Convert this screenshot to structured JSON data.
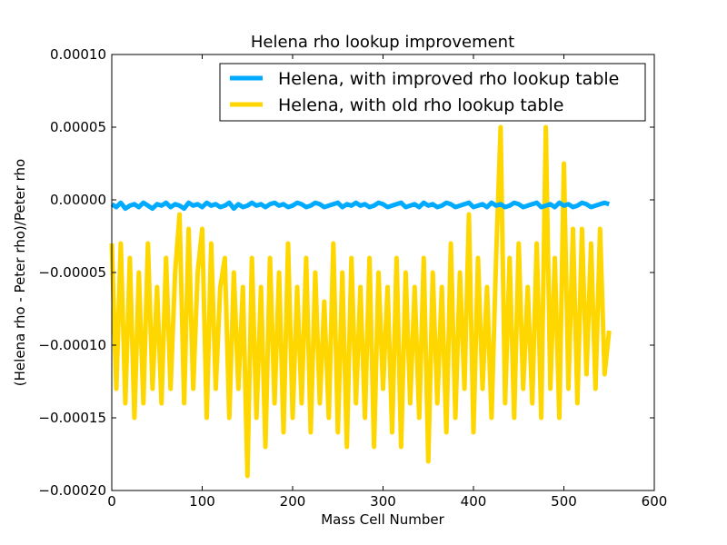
{
  "chart_data": {
    "type": "line",
    "title": "Helena rho lookup improvement",
    "xlabel": "Mass Cell Number",
    "ylabel": "(Helena rho - Peter rho)/Peter rho",
    "xlim": [
      0,
      600
    ],
    "ylim": [
      -0.0002,
      0.0001
    ],
    "x_ticks": [
      0,
      100,
      200,
      300,
      400,
      500,
      600
    ],
    "x_tick_labels": [
      "0",
      "100",
      "200",
      "300",
      "400",
      "500",
      "600"
    ],
    "y_ticks": [
      -0.0002,
      -0.00015,
      -0.0001,
      -5e-05,
      0,
      5e-05,
      0.0001
    ],
    "y_tick_labels": [
      "−0.00020",
      "−0.00015",
      "−0.00010",
      "−0.00005",
      "0.00000",
      "0.00005",
      "0.00010"
    ],
    "grid": false,
    "legend_position": "top-right",
    "series": [
      {
        "name": "Helena, with improved rho lookup table",
        "color": "#00aaff",
        "x": [
          0,
          5,
          10,
          15,
          20,
          25,
          30,
          35,
          40,
          45,
          50,
          55,
          60,
          65,
          70,
          75,
          80,
          85,
          90,
          95,
          100,
          105,
          110,
          115,
          120,
          125,
          130,
          135,
          140,
          145,
          150,
          155,
          160,
          165,
          170,
          175,
          180,
          185,
          190,
          195,
          200,
          205,
          210,
          215,
          220,
          225,
          230,
          235,
          240,
          245,
          250,
          255,
          260,
          265,
          270,
          275,
          280,
          285,
          290,
          295,
          300,
          305,
          310,
          315,
          320,
          325,
          330,
          335,
          340,
          345,
          350,
          355,
          360,
          365,
          370,
          375,
          380,
          385,
          390,
          395,
          400,
          405,
          410,
          415,
          420,
          425,
          430,
          435,
          440,
          445,
          450,
          455,
          460,
          465,
          470,
          475,
          480,
          485,
          490,
          495,
          500,
          505,
          510,
          515,
          520,
          525,
          530,
          535,
          540,
          545,
          550
        ],
        "values": [
          -3e-06,
          -5e-06,
          -2e-06,
          -6e-06,
          -4e-06,
          -3e-06,
          -5e-06,
          -2e-06,
          -4e-06,
          -6e-06,
          -3e-06,
          -4e-06,
          -2e-06,
          -5e-06,
          -3e-06,
          -4e-06,
          -6e-06,
          -2e-06,
          -4e-06,
          -3e-06,
          -5e-06,
          -2e-06,
          -4e-06,
          -3e-06,
          -5e-06,
          -4e-06,
          -2e-06,
          -6e-06,
          -3e-06,
          -5e-06,
          -4e-06,
          -2e-06,
          -4e-06,
          -3e-06,
          -5e-06,
          -3e-06,
          -2e-06,
          -4e-06,
          -3e-06,
          -5e-06,
          -4e-06,
          -2e-06,
          -3e-06,
          -5e-06,
          -4e-06,
          -2e-06,
          -3e-06,
          -5e-06,
          -4e-06,
          -3e-06,
          -2e-06,
          -5e-06,
          -3e-06,
          -4e-06,
          -2e-06,
          -4e-06,
          -3e-06,
          -5e-06,
          -4e-06,
          -2e-06,
          -3e-06,
          -5e-06,
          -4e-06,
          -3e-06,
          -2e-06,
          -5e-06,
          -4e-06,
          -3e-06,
          -5e-06,
          -2e-06,
          -4e-06,
          -3e-06,
          -5e-06,
          -4e-06,
          -2e-06,
          -3e-06,
          -5e-06,
          -4e-06,
          -3e-06,
          -2e-06,
          -5e-06,
          -4e-06,
          -3e-06,
          -5e-06,
          -2e-06,
          -4e-06,
          -3e-06,
          -5e-06,
          -4e-06,
          -2e-06,
          -3e-06,
          -5e-06,
          -4e-06,
          -3e-06,
          -2e-06,
          -5e-06,
          -4e-06,
          -3e-06,
          -5e-06,
          -2e-06,
          -4e-06,
          -3e-06,
          -5e-06,
          -4e-06,
          -2e-06,
          -3e-06,
          -5e-06,
          -4e-06,
          -3e-06,
          -2e-06,
          -3e-06
        ]
      },
      {
        "name": "Helena, with old rho lookup table",
        "color": "#ffd700",
        "x": [
          0,
          5,
          10,
          15,
          20,
          25,
          30,
          35,
          40,
          45,
          50,
          55,
          60,
          65,
          70,
          75,
          80,
          85,
          90,
          95,
          100,
          105,
          110,
          115,
          120,
          125,
          130,
          135,
          140,
          145,
          150,
          155,
          160,
          165,
          170,
          175,
          180,
          185,
          190,
          195,
          200,
          205,
          210,
          215,
          220,
          225,
          230,
          235,
          240,
          245,
          250,
          255,
          260,
          265,
          270,
          275,
          280,
          285,
          290,
          295,
          300,
          305,
          310,
          315,
          320,
          325,
          330,
          335,
          340,
          345,
          350,
          355,
          360,
          365,
          370,
          375,
          380,
          385,
          390,
          395,
          400,
          405,
          410,
          415,
          420,
          425,
          430,
          435,
          440,
          445,
          450,
          455,
          460,
          465,
          470,
          475,
          480,
          485,
          490,
          495,
          500,
          505,
          510,
          515,
          520,
          525,
          530,
          535,
          540,
          545,
          550
        ],
        "values": [
          -3e-05,
          -0.00013,
          -3e-05,
          -0.00014,
          -4e-05,
          -0.00015,
          -5e-05,
          -0.00014,
          -3e-05,
          -0.00013,
          -6e-05,
          -0.00014,
          -4e-05,
          -0.00013,
          -5e-05,
          -1e-05,
          -0.00014,
          -2e-05,
          -0.00013,
          -5e-05,
          -2e-05,
          -0.00015,
          -3e-05,
          -0.00013,
          -6e-05,
          -4e-05,
          -0.00015,
          -5e-05,
          -0.00013,
          -6e-05,
          -0.00019,
          -4e-05,
          -0.00015,
          -6e-05,
          -0.00017,
          -4e-05,
          -0.00014,
          -5e-05,
          -0.00016,
          -3e-05,
          -0.00015,
          -6e-05,
          -0.00014,
          -4e-05,
          -0.00016,
          -5e-05,
          -0.00014,
          -7e-05,
          -0.00015,
          -3e-05,
          -0.00016,
          -5e-05,
          -0.00017,
          -4e-05,
          -0.00014,
          -6e-05,
          -0.00015,
          -4e-05,
          -0.00017,
          -5e-05,
          -0.00013,
          -6e-05,
          -0.00016,
          -4e-05,
          -0.00017,
          -5e-05,
          -0.00014,
          -6e-05,
          -0.00015,
          -4e-05,
          -0.00018,
          -5e-05,
          -0.00014,
          -6e-05,
          -0.00016,
          -3e-05,
          -0.00015,
          -5e-05,
          -0.00013,
          -1e-05,
          -0.00016,
          -4e-05,
          -0.00013,
          -6e-05,
          -0.00015,
          -4e-05,
          5e-05,
          -0.00014,
          -4e-05,
          -0.00015,
          -3e-05,
          -0.00013,
          -6e-05,
          -0.00014,
          -3e-05,
          -0.00015,
          5e-05,
          -0.00013,
          -4e-05,
          -0.00015,
          2.5e-05,
          -0.00013,
          -2e-05,
          -0.00014,
          -2e-05,
          -0.00012,
          -3e-05,
          -0.00013,
          -2e-05,
          -0.00012,
          -9e-05
        ]
      }
    ]
  }
}
